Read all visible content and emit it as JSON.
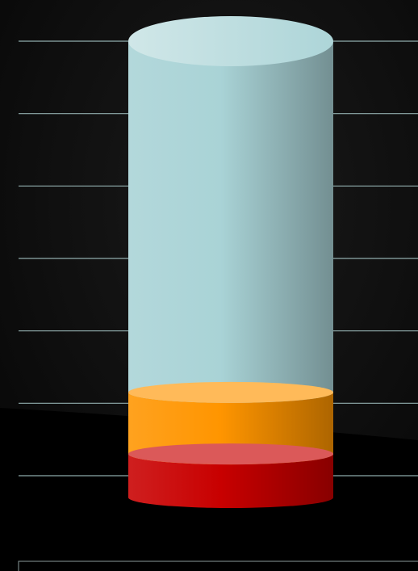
{
  "chart_data": {
    "type": "bar",
    "style": "stacked 3D cylinder",
    "title": "",
    "xlabel": "",
    "ylabel": "",
    "ylim": [
      0,
      6
    ],
    "grid": true,
    "legend": "none",
    "background": "#0a0a0a",
    "gridline_color": "#a7c8c8",
    "categories": [
      ""
    ],
    "series": [
      {
        "color": "#c80000",
        "values": [
          0.3
        ]
      },
      {
        "color": "#ff9500",
        "values": [
          0.85
        ]
      },
      {
        "color": "#a9d3d6",
        "values": [
          4.85
        ]
      }
    ]
  }
}
